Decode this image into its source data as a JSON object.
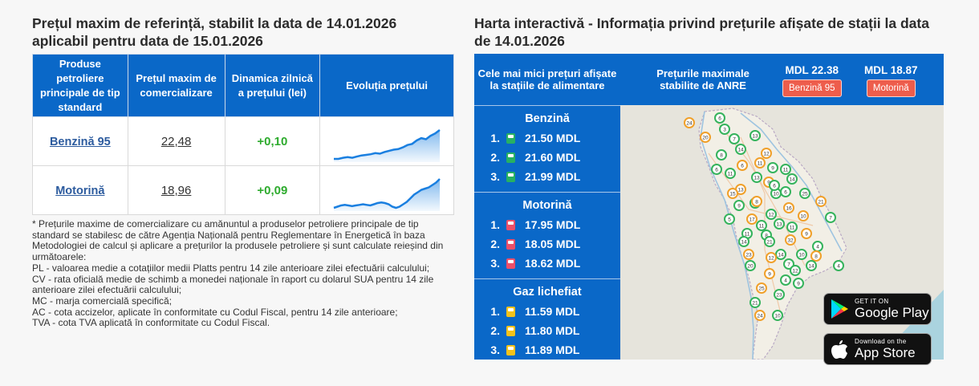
{
  "left": {
    "title": "Prețul maxim de referință, stabilit la data de 14.01.2026 aplicabil pentru data de 15.01.2026",
    "table": {
      "headers": [
        "Produse petroliere principale de tip standard",
        "Prețul maxim de comercializare",
        "Dinamica zilnică a prețului (lei)",
        "Evoluția prețului"
      ],
      "rows": [
        {
          "product": "Benzină 95",
          "price": "22,48",
          "delta": "+0,10",
          "trend": [
            30,
            30,
            31,
            31.5,
            31,
            32,
            33,
            33.5,
            34,
            35,
            34.5,
            36,
            37,
            38,
            38.5,
            40,
            42,
            43,
            46,
            48,
            47,
            50,
            52,
            55
          ]
        },
        {
          "product": "Motorină",
          "price": "18,96",
          "delta": "+0,09",
          "trend": [
            31,
            32,
            33,
            33.5,
            33,
            32.5,
            33,
            33.5,
            34,
            33.5,
            33,
            34,
            35,
            35.5,
            35,
            34,
            32,
            31,
            32,
            34,
            36,
            39,
            42,
            44,
            46,
            47,
            48,
            50,
            52,
            55
          ]
        }
      ]
    },
    "notes": [
      "* Prețurile maxime de comercializare cu amănuntul a produselor petroliere principale de tip standard se stabilesc de către Agenția Națională pentru Reglementare în Energetică în baza Metodologiei de calcul și aplicare a prețurilor la produsele petroliere și sunt calculate reieșind din următoarele:",
      "PL - valoarea medie a cotațiilor medii Platts pentru 14 zile anterioare zilei efectuării calculului;",
      "CV - rata oficială medie de schimb a monedei naționale în raport cu dolarul SUA pentru 14 zile anterioare zilei efectuării calculului;",
      "MC - marja comercială specifică;",
      "AC - cota accizelor, aplicate în conformitate cu Codul Fiscal, pentru 14 zile anterioare;",
      "TVA - cota TVA aplicată în conformitate cu Codul Fiscal."
    ]
  },
  "right": {
    "title": "Harta interactivă - Informația privind prețurile afișate de stații la data de 14.01.2026",
    "header": {
      "lowest_label": "Cele mai mici prețuri afișate la stațiile de alimentare",
      "max_label": "Prețurile maximale stabilite de ANRE",
      "max_items": [
        {
          "amount": "MDL 22.38",
          "badge": "Benzină 95"
        },
        {
          "amount": "MDL 18.87",
          "badge": "Motorină"
        }
      ]
    },
    "fuels": [
      {
        "name": "Benzină",
        "color": "#27b062",
        "prices": [
          {
            "rank": "1.",
            "value": "21.50 MDL"
          },
          {
            "rank": "2.",
            "value": "21.60 MDL"
          },
          {
            "rank": "3.",
            "value": "21.99 MDL"
          }
        ]
      },
      {
        "name": "Motorină",
        "color": "#ec4f6a",
        "prices": [
          {
            "rank": "1.",
            "value": "17.95 MDL"
          },
          {
            "rank": "2.",
            "value": "18.05 MDL"
          },
          {
            "rank": "3.",
            "value": "18.62 MDL"
          }
        ]
      },
      {
        "name": "Gaz lichefiat",
        "color": "#f4c21a",
        "prices": [
          {
            "rank": "1.",
            "value": "11.59 MDL"
          },
          {
            "rank": "2.",
            "value": "11.80 MDL"
          },
          {
            "rank": "3.",
            "value": "11.89 MDL"
          }
        ]
      }
    ],
    "map_markers": [
      "24",
      "6",
      "3",
      "20",
      "13",
      "7",
      "12",
      "14",
      "8",
      "6",
      "11",
      "13",
      "9",
      "14",
      "6",
      "13",
      "10",
      "11",
      "16",
      "12",
      "9",
      "17",
      "11",
      "13",
      "10",
      "11",
      "8",
      "9",
      "4",
      "21",
      "32",
      "11",
      "14",
      "8",
      "7",
      "20",
      "9",
      "12",
      "4",
      "25",
      "23",
      "21",
      "24",
      "10",
      "14",
      "15",
      "6",
      "25",
      "21",
      "7",
      "11",
      "11",
      "9",
      "5",
      "23",
      "9",
      "4",
      "12",
      "10",
      "14",
      "8",
      "6"
    ],
    "stores": [
      {
        "small": "GET IT ON",
        "big": "Google Play",
        "icon": "google-play-icon"
      },
      {
        "small": "Download on the",
        "big": "App Store",
        "icon": "apple-icon"
      }
    ]
  }
}
